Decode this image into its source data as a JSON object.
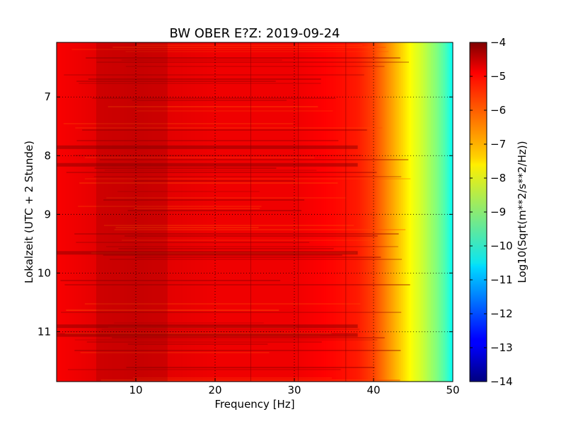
{
  "chart_data": {
    "type": "heatmap",
    "title": "BW OBER E?Z: 2019-09-24",
    "xlabel": "Frequency [Hz]",
    "ylabel": "Lokalzeit (UTC + 2 Stunde)",
    "xlim": [
      0,
      50
    ],
    "ylim": [
      11.85,
      6.07
    ],
    "x_ticks": [
      10,
      20,
      30,
      40,
      50
    ],
    "y_ticks": [
      7,
      8,
      9,
      10,
      11
    ],
    "grid": true,
    "colormap": "jet",
    "colorbar": {
      "label": "Log10(Sqrt(m**2/s**2/Hz))",
      "range": [
        -14,
        -4
      ],
      "ticks": [
        -4,
        -5,
        -6,
        -7,
        -8,
        -9,
        -10,
        -11,
        -12,
        -13,
        -14
      ]
    },
    "profile": {
      "frequency_hz": [
        0,
        5,
        10,
        15,
        20,
        25,
        30,
        35,
        38,
        40,
        41,
        42,
        43,
        44,
        45,
        46,
        47,
        48,
        49,
        50
      ],
      "log_amplitude": [
        -5.2,
        -5.0,
        -4.9,
        -5.0,
        -5.1,
        -5.1,
        -5.1,
        -5.3,
        -5.5,
        -5.9,
        -6.3,
        -6.7,
        -7.1,
        -7.5,
        -7.9,
        -8.2,
        -8.6,
        -9.0,
        -9.5,
        -10.2
      ]
    },
    "dark_bands_hour": [
      7.85,
      8.15,
      9.65,
      10.9,
      11.05
    ],
    "spectral_lines_hz": [
      24.5,
      30.5,
      36.5
    ]
  }
}
